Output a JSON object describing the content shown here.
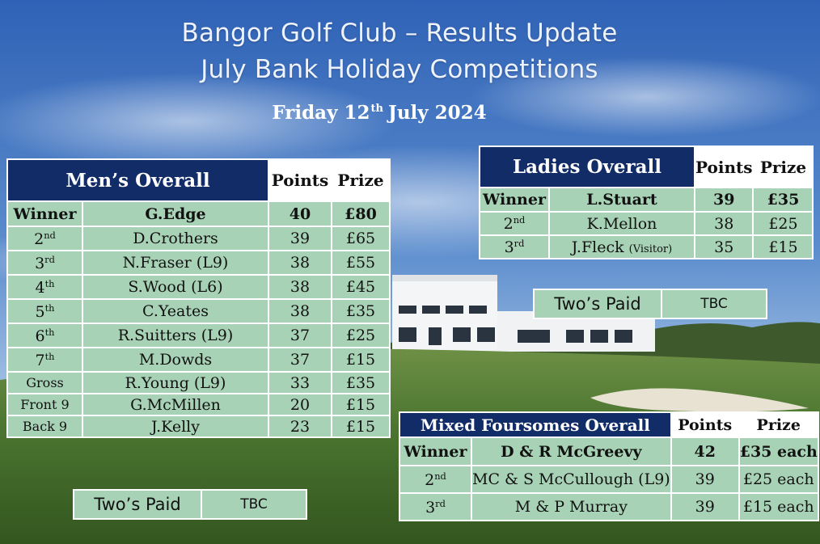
{
  "header": {
    "title_line1": "Bangor Golf Club – Results Update",
    "title_line2": "July Bank Holiday Competitions",
    "date_pre": "Friday 12",
    "date_sup": "th",
    "date_post": "July 2024"
  },
  "mens": {
    "heading": "Men’s Overall",
    "points_label": "Points",
    "prize_label": "Prize",
    "rows": [
      {
        "place": "Winner",
        "sup": "",
        "name": "G.Edge",
        "points": "40",
        "prize": "£80"
      },
      {
        "place": "2",
        "sup": "nd",
        "name": "D.Crothers",
        "points": "39",
        "prize": "£65"
      },
      {
        "place": "3",
        "sup": "rd",
        "name": "N.Fraser (L9)",
        "points": "38",
        "prize": "£55"
      },
      {
        "place": "4",
        "sup": "th",
        "name": "S.Wood (L6)",
        "points": "38",
        "prize": "£45"
      },
      {
        "place": "5",
        "sup": "th",
        "name": "C.Yeates",
        "points": "38",
        "prize": "£35"
      },
      {
        "place": "6",
        "sup": "th",
        "name": "R.Suitters (L9)",
        "points": "37",
        "prize": "£25"
      },
      {
        "place": "7",
        "sup": "th",
        "name": "M.Dowds",
        "points": "37",
        "prize": "£15"
      },
      {
        "place": "Gross",
        "sup": "",
        "name": "R.Young (L9)",
        "points": "33",
        "prize": "£35"
      },
      {
        "place": "Front 9",
        "sup": "",
        "name": "G.McMillen",
        "points": "20",
        "prize": "£15"
      },
      {
        "place": "Back 9",
        "sup": "",
        "name": "J.Kelly",
        "points": "23",
        "prize": "£15"
      }
    ],
    "twos_label": "Two’s Paid",
    "twos_value": "TBC"
  },
  "ladies": {
    "heading": "Ladies Overall",
    "points_label": "Points",
    "prize_label": "Prize",
    "rows": [
      {
        "place": "Winner",
        "sup": "",
        "name": "L.Stuart",
        "note": "",
        "points": "39",
        "prize": "£35"
      },
      {
        "place": "2",
        "sup": "nd",
        "name": "K.Mellon",
        "note": "",
        "points": "38",
        "prize": "£25"
      },
      {
        "place": "3",
        "sup": "rd",
        "name": "J.Fleck",
        "note": "(Visitor)",
        "points": "35",
        "prize": "£15"
      }
    ],
    "twos_label": "Two’s Paid",
    "twos_value": "TBC"
  },
  "mixed": {
    "heading": "Mixed Foursomes Overall",
    "points_label": "Points",
    "prize_label": "Prize",
    "rows": [
      {
        "place": "Winner",
        "sup": "",
        "name": "D & R McGreevy",
        "points": "42",
        "prize": "£35 each"
      },
      {
        "place": "2",
        "sup": "nd",
        "name": "MC & S McCullough (L9)",
        "points": "39",
        "prize": "£25 each"
      },
      {
        "place": "3",
        "sup": "rd",
        "name": "M & P Murray",
        "points": "39",
        "prize": "£15 each"
      }
    ]
  },
  "colors": {
    "navy": "#122c68",
    "cell_green": "#a8d2b6",
    "sky": "#3f6fb8",
    "grass": "#4f7a34"
  }
}
